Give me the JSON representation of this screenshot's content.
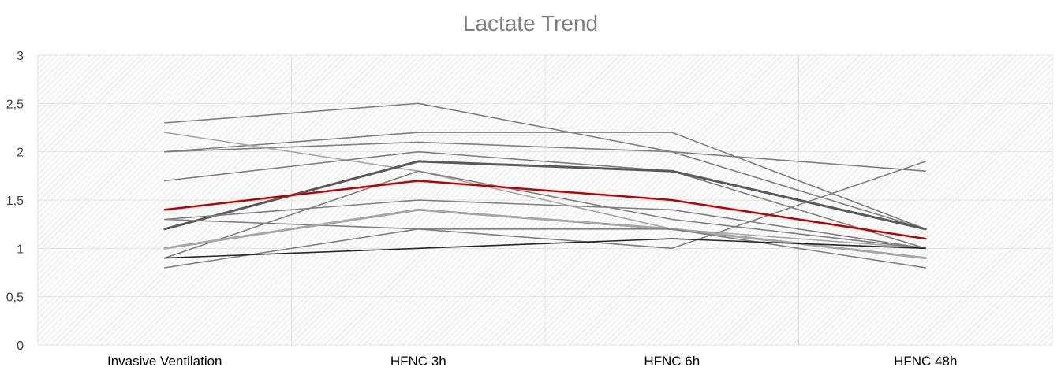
{
  "chart_data": {
    "type": "line",
    "title": "Lactate Trend",
    "xlabel": "",
    "ylabel": "",
    "categories": [
      "Invasive Ventilation",
      "HFNC 3h",
      "HFNC 6h",
      "HFNC 48h"
    ],
    "ylim": [
      0,
      3
    ],
    "yticks": [
      "0",
      "0,5",
      "1",
      "1,5",
      "2",
      "2,5",
      "3"
    ],
    "grid": true,
    "legend": "none",
    "series": [
      {
        "values": [
          2.3,
          2.5,
          2.0,
          1.2
        ],
        "color": "#7f7f7f"
      },
      {
        "values": [
          2.0,
          2.2,
          2.2,
          1.2
        ],
        "color": "#7f7f7f"
      },
      {
        "values": [
          2.0,
          2.1,
          2.0,
          1.8
        ],
        "color": "#7f7f7f"
      },
      {
        "values": [
          2.2,
          1.8,
          1.2,
          1.0
        ],
        "color": "#a6a6a6"
      },
      {
        "values": [
          1.7,
          2.0,
          1.8,
          1.0
        ],
        "color": "#7f7f7f"
      },
      {
        "values": [
          1.2,
          1.9,
          1.8,
          1.2
        ],
        "color": "#595959",
        "width": 3
      },
      {
        "values": [
          0.9,
          1.8,
          1.3,
          1.0
        ],
        "color": "#7f7f7f"
      },
      {
        "values": [
          1.3,
          1.5,
          1.4,
          1.0
        ],
        "color": "#7f7f7f"
      },
      {
        "values": [
          1.3,
          1.2,
          1.0,
          1.9
        ],
        "color": "#7f7f7f"
      },
      {
        "values": [
          1.0,
          1.4,
          1.2,
          0.9
        ],
        "color": "#a6a6a6",
        "width": 3
      },
      {
        "values": [
          0.8,
          1.2,
          1.2,
          0.8
        ],
        "color": "#7f7f7f"
      },
      {
        "values": [
          0.9,
          1.0,
          1.1,
          1.0
        ],
        "color": "#262626"
      },
      {
        "values": [
          1.4,
          1.7,
          1.5,
          1.1
        ],
        "color": "#c00000",
        "width": 2.5
      }
    ]
  }
}
